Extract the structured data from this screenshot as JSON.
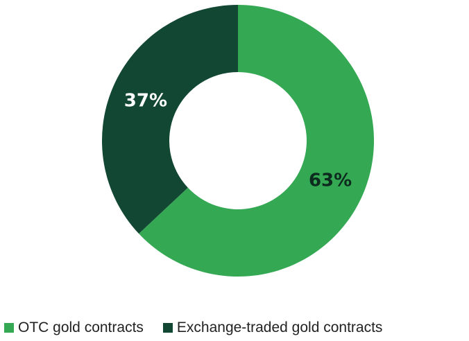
{
  "chart_data": {
    "type": "pie",
    "donut": true,
    "categories": [
      "OTC gold contracts",
      "Exchange-traded gold contracts"
    ],
    "values": [
      63,
      37
    ],
    "labels": [
      "63%",
      "37%"
    ],
    "colors": [
      "#34a853",
      "#124734"
    ],
    "label_colors": [
      "#0d2a1e",
      "#ffffff"
    ],
    "legend": "bottom"
  }
}
